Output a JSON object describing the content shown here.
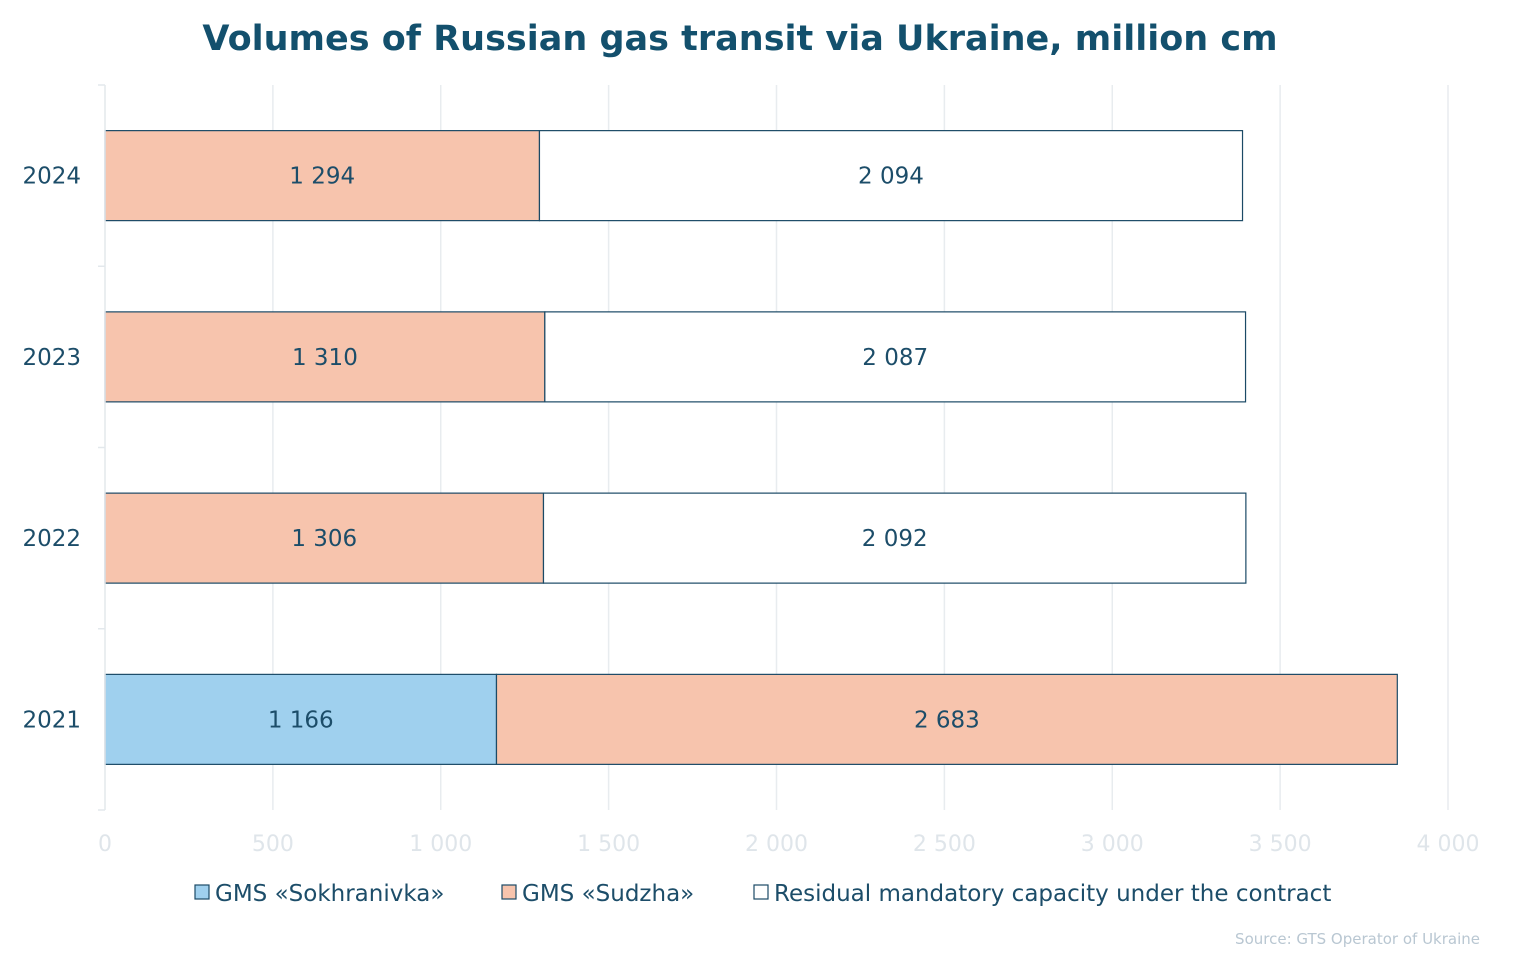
{
  "chart_data": {
    "type": "bar",
    "orientation": "horizontal",
    "stacked": true,
    "title": "Volumes of Russian gas transit via Ukraine, million cm",
    "categories": [
      "2021",
      "2022",
      "2023",
      "2024"
    ],
    "series": [
      {
        "name": "GMS «Sokhranivka»",
        "color": "#9fd0ee",
        "values": [
          1166,
          0,
          0,
          0
        ],
        "labels": [
          "1 166",
          "",
          "",
          ""
        ]
      },
      {
        "name": "GMS «Sudzha»",
        "color": "#f7c4ad",
        "values": [
          2683,
          1306,
          1310,
          1294
        ],
        "labels": [
          "2 683",
          "1 306",
          "1 310",
          "1 294"
        ]
      },
      {
        "name": "Residual mandatory capacity under the contract",
        "color": "#ffffff",
        "values": [
          0,
          2092,
          2087,
          2094
        ],
        "labels": [
          "",
          "2 092",
          "2 087",
          "2 094"
        ]
      }
    ],
    "xlim": [
      0,
      4000
    ],
    "xticks": [
      0,
      500,
      1000,
      1500,
      2000,
      2500,
      3000,
      3500,
      4000
    ],
    "xtick_labels": [
      "0",
      "500",
      "1 000",
      "1 500",
      "2 000",
      "2 500",
      "3 000",
      "3 500",
      "4 000"
    ],
    "grid": true,
    "legend_position": "bottom",
    "bar_border_color": "#1b4a66",
    "source": "Source: GTS Operator of Ukraine"
  }
}
